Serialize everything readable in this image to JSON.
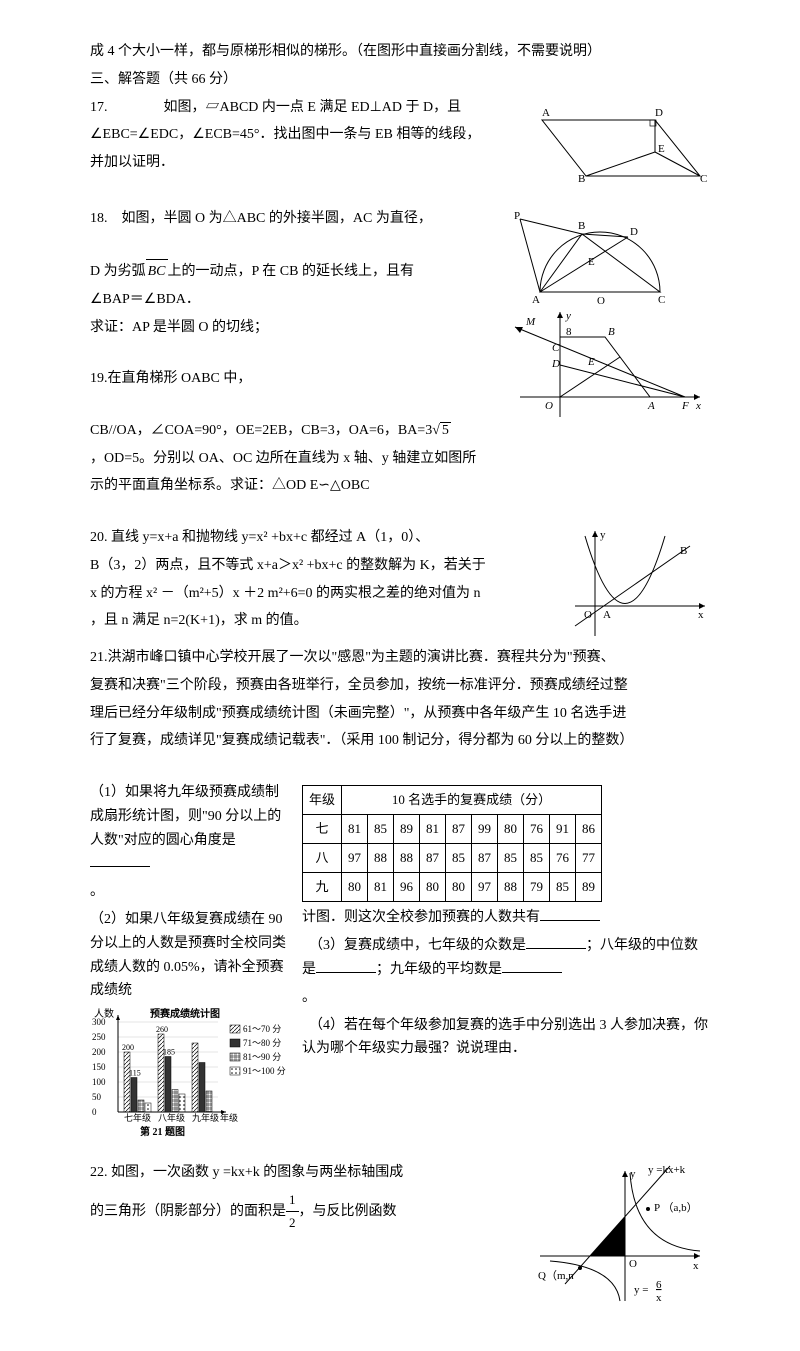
{
  "intro": "成 4 个大小一样，都与原梯形相似的梯形。（在图形中直接画分割线，不需要说明）",
  "section3": "三、解答题（共 66 分）",
  "q17": {
    "num": "17.",
    "text1": "　　　　如图，▱ABCD 内一点 E 满足 ED⊥AD 于 D，且",
    "text2": "∠EBC=∠EDC，∠ECB=45°．找出图中一条与 EB 相等的线段，",
    "text3": "并加以证明．"
  },
  "q18": {
    "num": "18.",
    "text1": "如图，半圆 O 为△ABC 的外接半圆，AC 为直径，",
    "text2_a": "D 为劣弧",
    "arc": "BC",
    "text2_b": "上的一动点，P 在 CB 的延长线上，且有",
    "text3": "∠BAP＝∠BDA．",
    "text4": "求证：AP 是半圆 O 的切线；"
  },
  "q19": {
    "num": "19.",
    "text1": "在直角梯形 OABC 中，",
    "text2_a": "CB//OA，∠COA=90°，OE=2EB，CB=3，OA=6，BA=3",
    "text2_sqrt": "5",
    "text3": "，OD=5。分别以 OA、OC 边所在直线为 x 轴、y 轴建立如图所",
    "text4": "示的平面直角坐标系。求证：△OD E∽△OBC"
  },
  "q20": {
    "num": "20.",
    "text1": "直线 y=x+a 和抛物线 y=x² +bx+c 都经过 A（1，0）、",
    "text2": "B（3，2）两点，且不等式 x+a＞x² +bx+c 的整数解为 K，若关于",
    "text3": "x 的方程 x² －（m²+5）x ＋2 m²+6=0 的两实根之差的绝对值为 n",
    "text4": "，且 n 满足 n=2(K+1)，求 m 的值。"
  },
  "q21": {
    "num": "21.",
    "text1": "洪湖市峰口镇中心学校开展了一次以\"感恩\"为主题的演讲比赛．赛程共分为\"预赛、",
    "text2": "复赛和决赛\"三个阶段，预赛由各班举行，全员参加，按统一标准评分．预赛成绩经过整",
    "text3": "理后已经分年级制成\"预赛成绩统计图（未画完整）\"，从预赛中各年级产生 10 名选手进",
    "text4": "行了复赛，成绩详见\"复赛成绩记载表\"．（采用 100 制记分，得分都为 60 分以上的整数）",
    "sub1": "（1）如果将九年级预赛成绩制成扇形统计图，则\"90 分以上的人数\"对应的圆心角度是",
    "sub2": "（2）如果八年级复赛成绩在 90 分以上的人数是预赛时全校同类成绩人数的 0.05%，请补全预赛成绩统",
    "sub2b": "计图．则这次全校参加预赛的人数共有",
    "sub3": "（3）复赛成绩中，七年级的众数是",
    "sub3b": "；八年级的中位数是",
    "sub3c": "；九年级的平均数是",
    "sub4": "（4）若在每个年级参加复赛的选手中分别选出 3 人参加决赛，你认为哪个年级实力最强？说说理由．",
    "table": {
      "header_grade": "年级",
      "header_scores": "10 名选手的复赛成绩（分）",
      "rows": [
        {
          "g": "七",
          "v": [
            81,
            85,
            89,
            81,
            87,
            99,
            80,
            76,
            91,
            86
          ]
        },
        {
          "g": "八",
          "v": [
            97,
            88,
            88,
            87,
            85,
            87,
            85,
            85,
            76,
            77
          ]
        },
        {
          "g": "九",
          "v": [
            80,
            81,
            96,
            80,
            80,
            97,
            88,
            79,
            85,
            89
          ]
        }
      ]
    },
    "chart": {
      "title": "预赛成绩统计图",
      "axis_y": "人数",
      "axis_x": "年级",
      "caption": "第 21 题图",
      "ylabels": [
        0,
        50,
        100,
        150,
        200,
        250,
        300
      ],
      "categories": [
        "七年级",
        "八年级",
        "九年级"
      ],
      "legend": [
        "61～70 分",
        "71～80 分",
        "81～90 分",
        "91～100 分"
      ],
      "legend_patterns": [
        "hatch",
        "dark",
        "grid",
        "dots"
      ],
      "series_values": {
        "七年级": [
          200,
          115,
          40,
          30
        ],
        "八年级": [
          260,
          185,
          75,
          60
        ],
        "九年级": [
          230,
          165,
          70,
          null
        ]
      },
      "value_labels": {
        "七年级": [
          200,
          115,
          null,
          null
        ],
        "八年级": [
          260,
          185,
          null,
          null
        ],
        "九年级": [
          null,
          null,
          null,
          null
        ]
      }
    }
  },
  "q22": {
    "num": "22.",
    "text1": "如图，一次函数 y =kx+k 的图象与两坐标轴围成",
    "text2_a": "的三角形（阴影部分）的面积是",
    "frac_n": "1",
    "frac_d": "2",
    "text2_b": "，与反比例函数",
    "fig_labels": {
      "y": "y",
      "x": "x",
      "line": "y =kx+k",
      "P": "P （a,b）",
      "O": "O",
      "Q": "Q（m,n",
      "rf_a": "y =",
      "rf_n": "6",
      "rf_d": "x"
    }
  }
}
